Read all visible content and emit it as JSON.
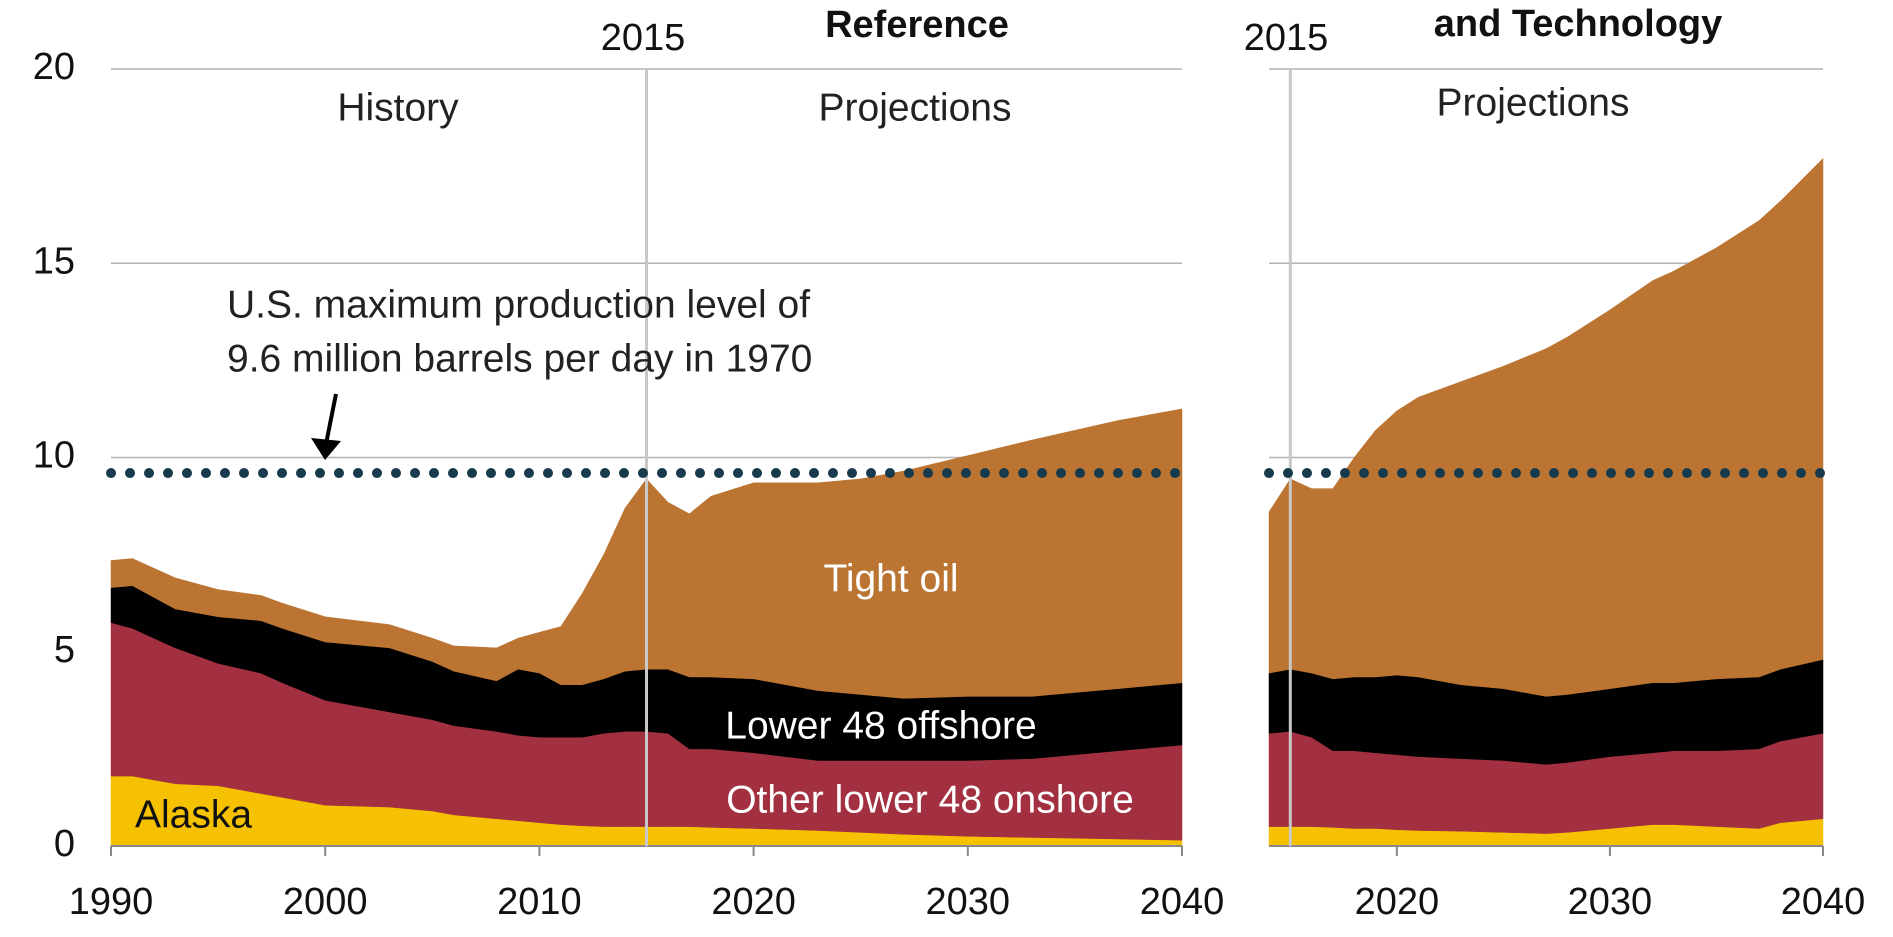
{
  "chart_data": [
    {
      "type": "area",
      "title": "Reference",
      "marker": {
        "value": 2015,
        "label": "2015"
      },
      "period_labels": [
        "History",
        "Projections"
      ],
      "annotation": [
        "U.S. maximum production level of",
        "9.6 million barrels per day in 1970"
      ],
      "reference_line": {
        "value": 9.6,
        "color": "#173b4d"
      },
      "x": [
        1990,
        1991,
        1993,
        1995,
        1997,
        1998,
        2000,
        2003,
        2005,
        2006,
        2008,
        2009,
        2010,
        2011,
        2012,
        2013,
        2014,
        2015,
        2016,
        2017,
        2018,
        2020,
        2023,
        2025,
        2027,
        2030,
        2033,
        2035,
        2037,
        2040
      ],
      "series": [
        {
          "name": "Alaska",
          "color": "#f6c100",
          "values": [
            1.8,
            1.8,
            1.6,
            1.55,
            1.35,
            1.25,
            1.05,
            1.0,
            0.9,
            0.8,
            0.7,
            0.65,
            0.6,
            0.55,
            0.52,
            0.5,
            0.5,
            0.5,
            0.5,
            0.5,
            0.48,
            0.45,
            0.4,
            0.35,
            0.3,
            0.25,
            0.22,
            0.2,
            0.18,
            0.15
          ]
        },
        {
          "name": "Other lower 48 onshore",
          "color": "#a23041",
          "values": [
            3.95,
            3.8,
            3.5,
            3.15,
            3.1,
            2.95,
            2.7,
            2.45,
            2.35,
            2.3,
            2.25,
            2.2,
            2.2,
            2.25,
            2.28,
            2.4,
            2.45,
            2.45,
            2.4,
            2.0,
            2.02,
            1.95,
            1.8,
            1.85,
            1.9,
            1.95,
            2.03,
            2.15,
            2.27,
            2.45
          ]
        },
        {
          "name": "Lower 48 offshore",
          "color": "#000000",
          "values": [
            0.9,
            1.1,
            1.0,
            1.2,
            1.35,
            1.4,
            1.5,
            1.65,
            1.5,
            1.4,
            1.3,
            1.7,
            1.65,
            1.35,
            1.35,
            1.4,
            1.55,
            1.6,
            1.65,
            1.85,
            1.85,
            1.9,
            1.8,
            1.7,
            1.6,
            1.65,
            1.6,
            1.6,
            1.6,
            1.6
          ]
        },
        {
          "name": "Tight oil",
          "color": "#bb7431",
          "values": [
            0.7,
            0.7,
            0.8,
            0.7,
            0.65,
            0.65,
            0.65,
            0.6,
            0.6,
            0.65,
            0.85,
            0.8,
            1.05,
            1.5,
            2.35,
            3.2,
            4.2,
            4.9,
            4.3,
            4.2,
            4.65,
            5.05,
            5.35,
            5.55,
            5.85,
            6.2,
            6.6,
            6.75,
            6.9,
            7.05
          ]
        }
      ],
      "xlim": [
        1990,
        2040
      ],
      "xticks": [
        1990,
        2000,
        2010,
        2020,
        2030,
        2040
      ],
      "ylim": [
        0,
        20
      ],
      "yticks": [
        0,
        5,
        10,
        15,
        20
      ],
      "ytick_labels": true,
      "grid": true
    },
    {
      "type": "area",
      "title": "and Technology",
      "marker": {
        "value": 2015,
        "label": "2015"
      },
      "period_labels": [
        "Projections"
      ],
      "reference_line": {
        "value": 9.6,
        "color": "#173b4d"
      },
      "x": [
        2014,
        2015,
        2016,
        2017,
        2018,
        2019,
        2020,
        2021,
        2023,
        2025,
        2027,
        2028,
        2030,
        2032,
        2033,
        2035,
        2037,
        2038,
        2040
      ],
      "series": [
        {
          "color": "#f6c100",
          "values": [
            0.5,
            0.5,
            0.5,
            0.48,
            0.45,
            0.45,
            0.42,
            0.4,
            0.38,
            0.35,
            0.32,
            0.35,
            0.45,
            0.55,
            0.55,
            0.5,
            0.45,
            0.6,
            0.7
          ]
        },
        {
          "color": "#a23041",
          "values": [
            2.4,
            2.45,
            2.3,
            1.97,
            2.0,
            1.95,
            1.93,
            1.9,
            1.87,
            1.85,
            1.78,
            1.8,
            1.85,
            1.85,
            1.9,
            1.95,
            2.05,
            2.1,
            2.2
          ]
        },
        {
          "color": "#000000",
          "values": [
            1.55,
            1.6,
            1.65,
            1.85,
            1.9,
            1.95,
            2.05,
            2.05,
            1.9,
            1.85,
            1.75,
            1.75,
            1.75,
            1.8,
            1.75,
            1.85,
            1.85,
            1.85,
            1.9
          ]
        },
        {
          "color": "#bb7431",
          "values": [
            4.15,
            4.9,
            4.75,
            4.9,
            5.65,
            6.35,
            6.8,
            7.2,
            7.8,
            8.3,
            8.95,
            9.2,
            9.75,
            10.35,
            10.6,
            11.1,
            11.75,
            12.05,
            12.9
          ]
        }
      ],
      "xlim": [
        2014,
        2040
      ],
      "xticks": [
        2020,
        2030,
        2040
      ],
      "ylim": [
        0,
        20
      ],
      "yticks": [
        0,
        5,
        10,
        15,
        20
      ],
      "ytick_labels": false,
      "grid": true
    }
  ]
}
